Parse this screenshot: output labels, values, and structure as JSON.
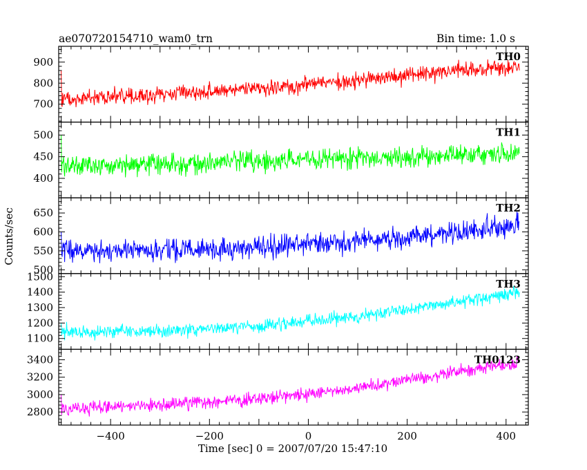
{
  "header": {
    "title": "ae070720154710_wam0_trn",
    "bin_time": "Bin time: 1.0 s"
  },
  "chart_data": {
    "type": "line",
    "xlabel": "Time [sec] 0 = 2007/07/20 15:47:10",
    "ylabel": "Counts/sec",
    "xlim": [
      -505,
      445
    ],
    "x_ticks": [
      -400,
      -200,
      0,
      200,
      400
    ],
    "x_tick_labels": [
      "−400",
      "−200",
      "0",
      "200",
      "400"
    ],
    "x_range": [
      -500,
      427
    ],
    "grid": false,
    "series": [
      {
        "name": "TH0",
        "color": "#ff0000",
        "ylim": [
          615,
          975
        ],
        "yticks": [
          700,
          800,
          900
        ],
        "trend": [
          [
            -500,
            720
          ],
          [
            -300,
            745
          ],
          [
            -100,
            775
          ],
          [
            100,
            815
          ],
          [
            300,
            860
          ],
          [
            427,
            880
          ]
        ],
        "noise": 50,
        "first_spike": 860
      },
      {
        "name": "TH1",
        "color": "#00ff00",
        "ylim": [
          355,
          530
        ],
        "yticks": [
          400,
          450,
          500
        ],
        "trend": [
          [
            -500,
            430
          ],
          [
            -300,
            432
          ],
          [
            -100,
            440
          ],
          [
            100,
            447
          ],
          [
            300,
            453
          ],
          [
            427,
            455
          ]
        ],
        "noise": 30,
        "first_spike": 500
      },
      {
        "name": "TH2",
        "color": "#0000ff",
        "ylim": [
          490,
          690
        ],
        "yticks": [
          500,
          550,
          600,
          650
        ],
        "trend": [
          [
            -500,
            550
          ],
          [
            -300,
            552
          ],
          [
            -100,
            560
          ],
          [
            100,
            575
          ],
          [
            300,
            600
          ],
          [
            427,
            615
          ]
        ],
        "noise": 38,
        "first_spike": 600
      },
      {
        "name": "TH3",
        "color": "#00ffff",
        "ylim": [
          1030,
          1520
        ],
        "yticks": [
          1100,
          1200,
          1300,
          1400,
          1500
        ],
        "trend": [
          [
            -500,
            1140
          ],
          [
            -300,
            1150
          ],
          [
            -100,
            1180
          ],
          [
            100,
            1240
          ],
          [
            300,
            1340
          ],
          [
            427,
            1400
          ]
        ],
        "noise": 55,
        "first_spike": 1200
      },
      {
        "name": "TH0123",
        "color": "#ff00ff",
        "ylim": [
          2650,
          3520
        ],
        "yticks": [
          2800,
          3000,
          3200,
          3400
        ],
        "trend": [
          [
            -500,
            2840
          ],
          [
            -300,
            2880
          ],
          [
            -100,
            2950
          ],
          [
            100,
            3070
          ],
          [
            300,
            3260
          ],
          [
            427,
            3360
          ]
        ],
        "noise": 95,
        "first_spike": 3000
      }
    ]
  }
}
